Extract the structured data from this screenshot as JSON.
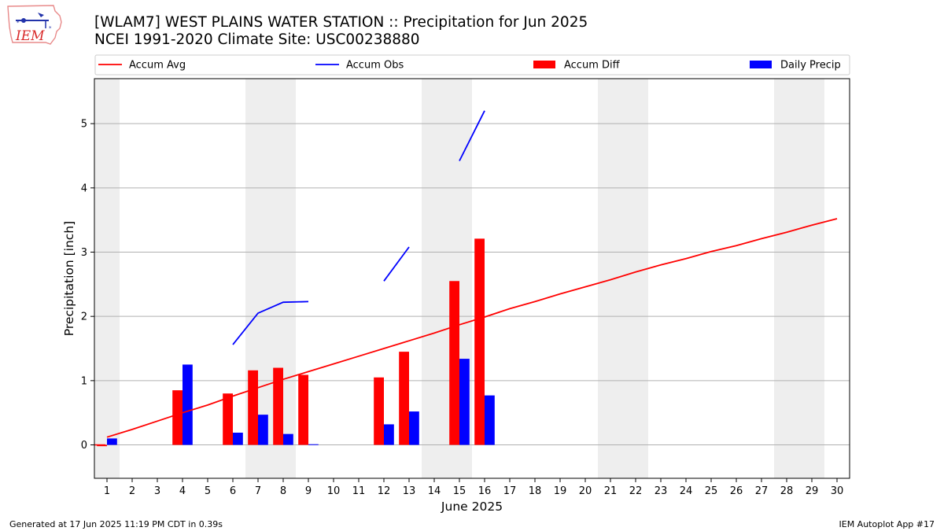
{
  "header": {
    "title_line1": "[WLAM7] WEST PLAINS WATER STATION :: Precipitation for Jun 2025",
    "title_line2": "NCEI 1991-2020 Climate Site: USC00238880"
  },
  "logo": {
    "text": "IEM",
    "icon": "iowa-state-outline-icon"
  },
  "footer": {
    "left": "Generated at 17 Jun 2025 11:19 PM CDT in 0.39s",
    "right": "IEM Autoplot App #17"
  },
  "colors": {
    "avg": "#ff0000",
    "obs": "#0000ff",
    "diff": "#ff0000",
    "daily": "#0000ff",
    "weekend": "#eeeeee",
    "grid": "#b0b0b0"
  },
  "chart_data": {
    "type": "bar",
    "xlabel": "June 2025",
    "ylabel": "Precipitation [inch]",
    "xlim": [
      0.5,
      30.5
    ],
    "ylim": [
      -0.52,
      5.7
    ],
    "yticks": [
      0,
      1,
      2,
      3,
      4,
      5
    ],
    "x": [
      1,
      2,
      3,
      4,
      5,
      6,
      7,
      8,
      9,
      10,
      11,
      12,
      13,
      14,
      15,
      16,
      17,
      18,
      19,
      20,
      21,
      22,
      23,
      24,
      25,
      26,
      27,
      28,
      29,
      30
    ],
    "weekend_days": [
      1,
      7,
      8,
      14,
      15,
      21,
      22,
      28,
      29
    ],
    "grid": true,
    "legend": {
      "placement": "top",
      "entries": [
        {
          "label": "Accum Avg",
          "kind": "line",
          "series": "accum_avg"
        },
        {
          "label": "Accum Obs",
          "kind": "line",
          "series": "accum_obs"
        },
        {
          "label": "Accum Diff",
          "kind": "bar",
          "series": "accum_diff"
        },
        {
          "label": "Daily Precip",
          "kind": "bar",
          "series": "daily_precip"
        }
      ]
    },
    "series": [
      {
        "name": "Accum Avg",
        "key": "accum_avg",
        "type": "line",
        "values": [
          0.12,
          0.24,
          0.37,
          0.5,
          0.62,
          0.76,
          0.89,
          1.02,
          1.14,
          1.26,
          1.38,
          1.5,
          1.62,
          1.74,
          1.87,
          1.99,
          2.12,
          2.23,
          2.35,
          2.46,
          2.57,
          2.69,
          2.8,
          2.9,
          3.01,
          3.1,
          3.21,
          3.31,
          3.42,
          3.52
        ]
      },
      {
        "name": "Accum Obs",
        "key": "accum_obs",
        "type": "line",
        "values": [
          null,
          null,
          null,
          null,
          null,
          1.56,
          2.05,
          2.22,
          2.23,
          null,
          null,
          2.55,
          3.08,
          null,
          4.42,
          5.2,
          null,
          null,
          null,
          null,
          null,
          null,
          null,
          null,
          null,
          null,
          null,
          null,
          null,
          null
        ]
      },
      {
        "name": "Accum Diff",
        "key": "accum_diff",
        "type": "bar",
        "values": [
          -0.02,
          null,
          null,
          0.85,
          null,
          0.8,
          1.16,
          1.2,
          1.09,
          null,
          null,
          1.05,
          1.45,
          null,
          2.55,
          3.21,
          null,
          null,
          null,
          null,
          null,
          null,
          null,
          null,
          null,
          null,
          null,
          null,
          null,
          null
        ]
      },
      {
        "name": "Daily Precip",
        "key": "daily_precip",
        "type": "bar",
        "values": [
          0.1,
          null,
          null,
          1.25,
          null,
          0.19,
          0.47,
          0.17,
          0.01,
          null,
          null,
          0.32,
          0.52,
          null,
          1.34,
          0.77,
          null,
          null,
          null,
          null,
          null,
          null,
          null,
          null,
          null,
          null,
          null,
          null,
          null,
          null
        ]
      }
    ]
  }
}
